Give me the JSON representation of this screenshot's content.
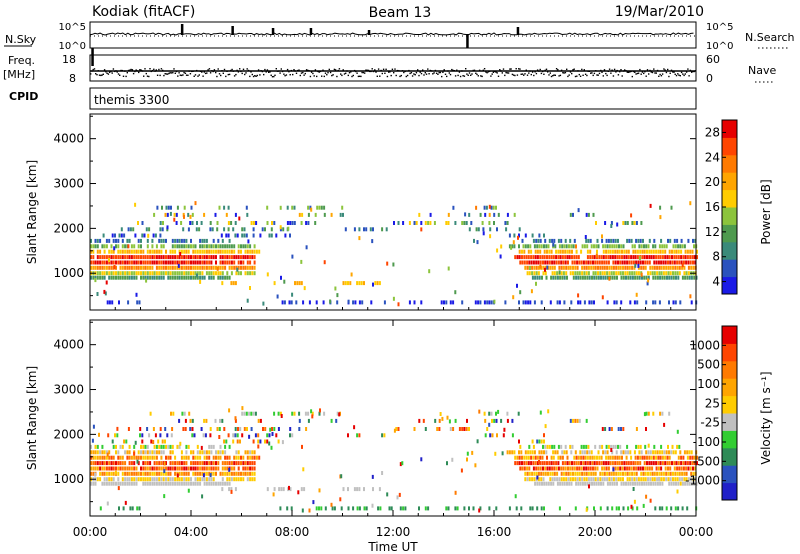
{
  "header": {
    "title": "Kodiak (fitACF)",
    "beam": "Beam 13",
    "date": "19/Mar/2010"
  },
  "status_panels": {
    "nsky_label": "N.Sky",
    "nsky_ticks": [
      "10^5",
      "10^0"
    ],
    "nsearch_label": "N.Search",
    "nsearch_ticks": [
      "10^5",
      "10^0"
    ],
    "freq_label": "Freq.",
    "freq_unit": "[MHz]",
    "freq_ticks": [
      "18",
      "8"
    ],
    "nave_label": "Nave",
    "nave_ticks": [
      "60",
      "0"
    ],
    "cpid_label": "CPID",
    "cpid_value": "themis 3300"
  },
  "chart_data": [
    {
      "type": "heatmap",
      "name": "power",
      "ylabel": "Slant Range [km]",
      "yticks": [
        "1000",
        "2000",
        "3000",
        "4000"
      ],
      "ylim": [
        180,
        4550
      ],
      "xlim": [
        0,
        24
      ],
      "colorbar": {
        "label": "Power [dB]",
        "ticks": [
          "4",
          "8",
          "12",
          "16",
          "20",
          "24",
          "28"
        ],
        "colors": [
          "#1a1ae6",
          "#2a52be",
          "#3a8a7a",
          "#4e9a4e",
          "#8cc43c",
          "#ffcc00",
          "#ffa500",
          "#ff7a00",
          "#ff4500",
          "#e60000"
        ]
      },
      "bands": [
        {
          "range": 350,
          "t": [
            [
              0.3,
              2.0
            ],
            [
              7.5,
              24.0
            ]
          ],
          "density": 0.35,
          "color_index": [
            0,
            1
          ]
        },
        {
          "range": 780,
          "t": [
            [
              5.2,
              5.8
            ],
            [
              7.0,
              8.5
            ],
            [
              10.0,
              11.5
            ]
          ],
          "density": 0.5,
          "color_index": [
            5,
            6
          ]
        },
        {
          "range": 900,
          "t": [
            [
              0,
              5.5
            ],
            [
              17.5,
              24
            ]
          ],
          "density": 0.9,
          "color_index": [
            2,
            3
          ]
        },
        {
          "range": 1000,
          "t": [
            [
              0,
              6.5
            ],
            [
              17.2,
              24
            ]
          ],
          "density": 0.9,
          "color_index": [
            4,
            5
          ]
        },
        {
          "range": 1120,
          "t": [
            [
              0,
              6.5
            ],
            [
              17.2,
              24
            ]
          ],
          "density": 0.95,
          "color_index": [
            6,
            7
          ]
        },
        {
          "range": 1240,
          "t": [
            [
              0,
              6.5
            ],
            [
              17,
              24
            ]
          ],
          "density": 0.95,
          "color_index": [
            8,
            9
          ]
        },
        {
          "range": 1360,
          "t": [
            [
              0,
              6.5
            ],
            [
              16.8,
              24
            ]
          ],
          "density": 0.95,
          "color_index": [
            8,
            9
          ]
        },
        {
          "range": 1480,
          "t": [
            [
              0,
              6.8
            ],
            [
              16.8,
              24
            ]
          ],
          "density": 0.85,
          "color_index": [
            5,
            6
          ]
        },
        {
          "range": 1600,
          "t": [
            [
              0,
              6.5
            ],
            [
              16.5,
              24
            ]
          ],
          "density": 0.75,
          "color_index": [
            3,
            4
          ]
        },
        {
          "range": 1720,
          "t": [
            [
              0,
              5.5
            ],
            [
              17.0,
              24
            ]
          ],
          "density": 0.55,
          "color_index": [
            1,
            2
          ]
        },
        {
          "range": 1840,
          "t": [
            [
              0.5,
              3.0
            ],
            [
              5.0,
              8.0
            ],
            [
              16.5,
              18
            ]
          ],
          "density": 0.35,
          "color_index": [
            0,
            2
          ]
        },
        {
          "range": 1980,
          "t": [
            [
              0.5,
              8.0
            ],
            [
              10,
              12
            ],
            [
              15,
              17
            ]
          ],
          "density": 0.3,
          "color_index": [
            1,
            3
          ]
        },
        {
          "range": 2120,
          "t": [
            [
              1.5,
              9.0
            ],
            [
              12,
              16.5
            ],
            [
              20,
              22
            ]
          ],
          "density": 0.3,
          "color_index": [
            0,
            5
          ]
        },
        {
          "range": 2300,
          "t": [
            [
              2.5,
              7.0
            ],
            [
              8,
              10
            ],
            [
              13,
              17
            ],
            [
              19,
              20
            ]
          ],
          "density": 0.3,
          "color_index": [
            0,
            6
          ]
        },
        {
          "range": 2460,
          "t": [
            [
              2,
              4
            ],
            [
              5,
              10
            ],
            [
              15.5,
              17
            ],
            [
              22,
              23
            ]
          ],
          "density": 0.3,
          "color_index": [
            1,
            4
          ]
        }
      ]
    },
    {
      "type": "heatmap",
      "name": "velocity",
      "ylabel": "Slant Range [km]",
      "yticks": [
        "1000",
        "2000",
        "3000",
        "4000"
      ],
      "xlabel": "Time UT",
      "xticks": [
        "00:00",
        "04:00",
        "08:00",
        "12:00",
        "16:00",
        "20:00",
        "00:00"
      ],
      "ylim": [
        180,
        4550
      ],
      "xlim": [
        0,
        24
      ],
      "colorbar": {
        "label": "Velocity [m s⁻¹]",
        "ticks": [
          "1000",
          "500",
          "100",
          "25",
          "-25",
          "-100",
          "-500",
          "-1000"
        ],
        "colors": [
          "#2020c8",
          "#2a52be",
          "#2e8b57",
          "#32cd32",
          "#c0c0c0",
          "#ffcc00",
          "#ffa500",
          "#ff7a00",
          "#ff4500",
          "#e60000"
        ]
      },
      "bands": [
        {
          "range": 350,
          "t": [
            [
              0.3,
              2.0
            ],
            [
              7.5,
              24.0
            ]
          ],
          "density": 0.35,
          "color_index": [
            2,
            3
          ]
        },
        {
          "range": 780,
          "t": [
            [
              5.2,
              5.8
            ],
            [
              7.0,
              8.5
            ],
            [
              10.0,
              11.5
            ]
          ],
          "density": 0.5,
          "color_index": [
            4,
            4
          ]
        },
        {
          "range": 900,
          "t": [
            [
              0,
              5.5
            ],
            [
              17.5,
              24
            ]
          ],
          "density": 0.9,
          "color_index": [
            4,
            4
          ]
        },
        {
          "range": 1000,
          "t": [
            [
              0,
              6.5
            ],
            [
              17.2,
              24
            ]
          ],
          "density": 0.9,
          "color_index": [
            4,
            5
          ]
        },
        {
          "range": 1120,
          "t": [
            [
              0,
              6.5
            ],
            [
              17.2,
              24
            ]
          ],
          "density": 0.95,
          "color_index": [
            5,
            7
          ]
        },
        {
          "range": 1240,
          "t": [
            [
              0,
              6.5
            ],
            [
              17,
              24
            ]
          ],
          "density": 0.95,
          "color_index": [
            6,
            9
          ]
        },
        {
          "range": 1360,
          "t": [
            [
              0,
              6.5
            ],
            [
              16.8,
              24
            ]
          ],
          "density": 0.95,
          "color_index": [
            7,
            9
          ]
        },
        {
          "range": 1480,
          "t": [
            [
              0,
              6.8
            ],
            [
              16.8,
              24
            ]
          ],
          "density": 0.85,
          "color_index": [
            5,
            8
          ]
        },
        {
          "range": 1600,
          "t": [
            [
              0,
              6.5
            ],
            [
              16.5,
              24
            ]
          ],
          "density": 0.75,
          "color_index": [
            4,
            6
          ]
        },
        {
          "range": 1720,
          "t": [
            [
              0,
              5.5
            ],
            [
              17.0,
              24
            ]
          ],
          "density": 0.55,
          "color_index": [
            3,
            5
          ]
        },
        {
          "range": 1840,
          "t": [
            [
              0.5,
              3.0
            ],
            [
              5.0,
              8.0
            ],
            [
              16.5,
              18
            ]
          ],
          "density": 0.35,
          "color_index": [
            0,
            9
          ]
        },
        {
          "range": 1980,
          "t": [
            [
              0.5,
              8.0
            ],
            [
              10,
              12
            ],
            [
              15,
              17
            ]
          ],
          "density": 0.3,
          "color_index": [
            0,
            9
          ]
        },
        {
          "range": 2120,
          "t": [
            [
              1.5,
              9.0
            ],
            [
              12,
              16.5
            ],
            [
              20,
              22
            ]
          ],
          "density": 0.3,
          "color_index": [
            0,
            9
          ]
        },
        {
          "range": 2300,
          "t": [
            [
              2.5,
              7.0
            ],
            [
              8,
              10
            ],
            [
              13,
              17
            ],
            [
              19,
              20
            ]
          ],
          "density": 0.3,
          "color_index": [
            0,
            9
          ]
        },
        {
          "range": 2460,
          "t": [
            [
              2,
              4
            ],
            [
              5,
              10
            ],
            [
              15.5,
              17
            ],
            [
              22,
              23
            ]
          ],
          "density": 0.3,
          "color_index": [
            2,
            6
          ]
        }
      ]
    }
  ]
}
